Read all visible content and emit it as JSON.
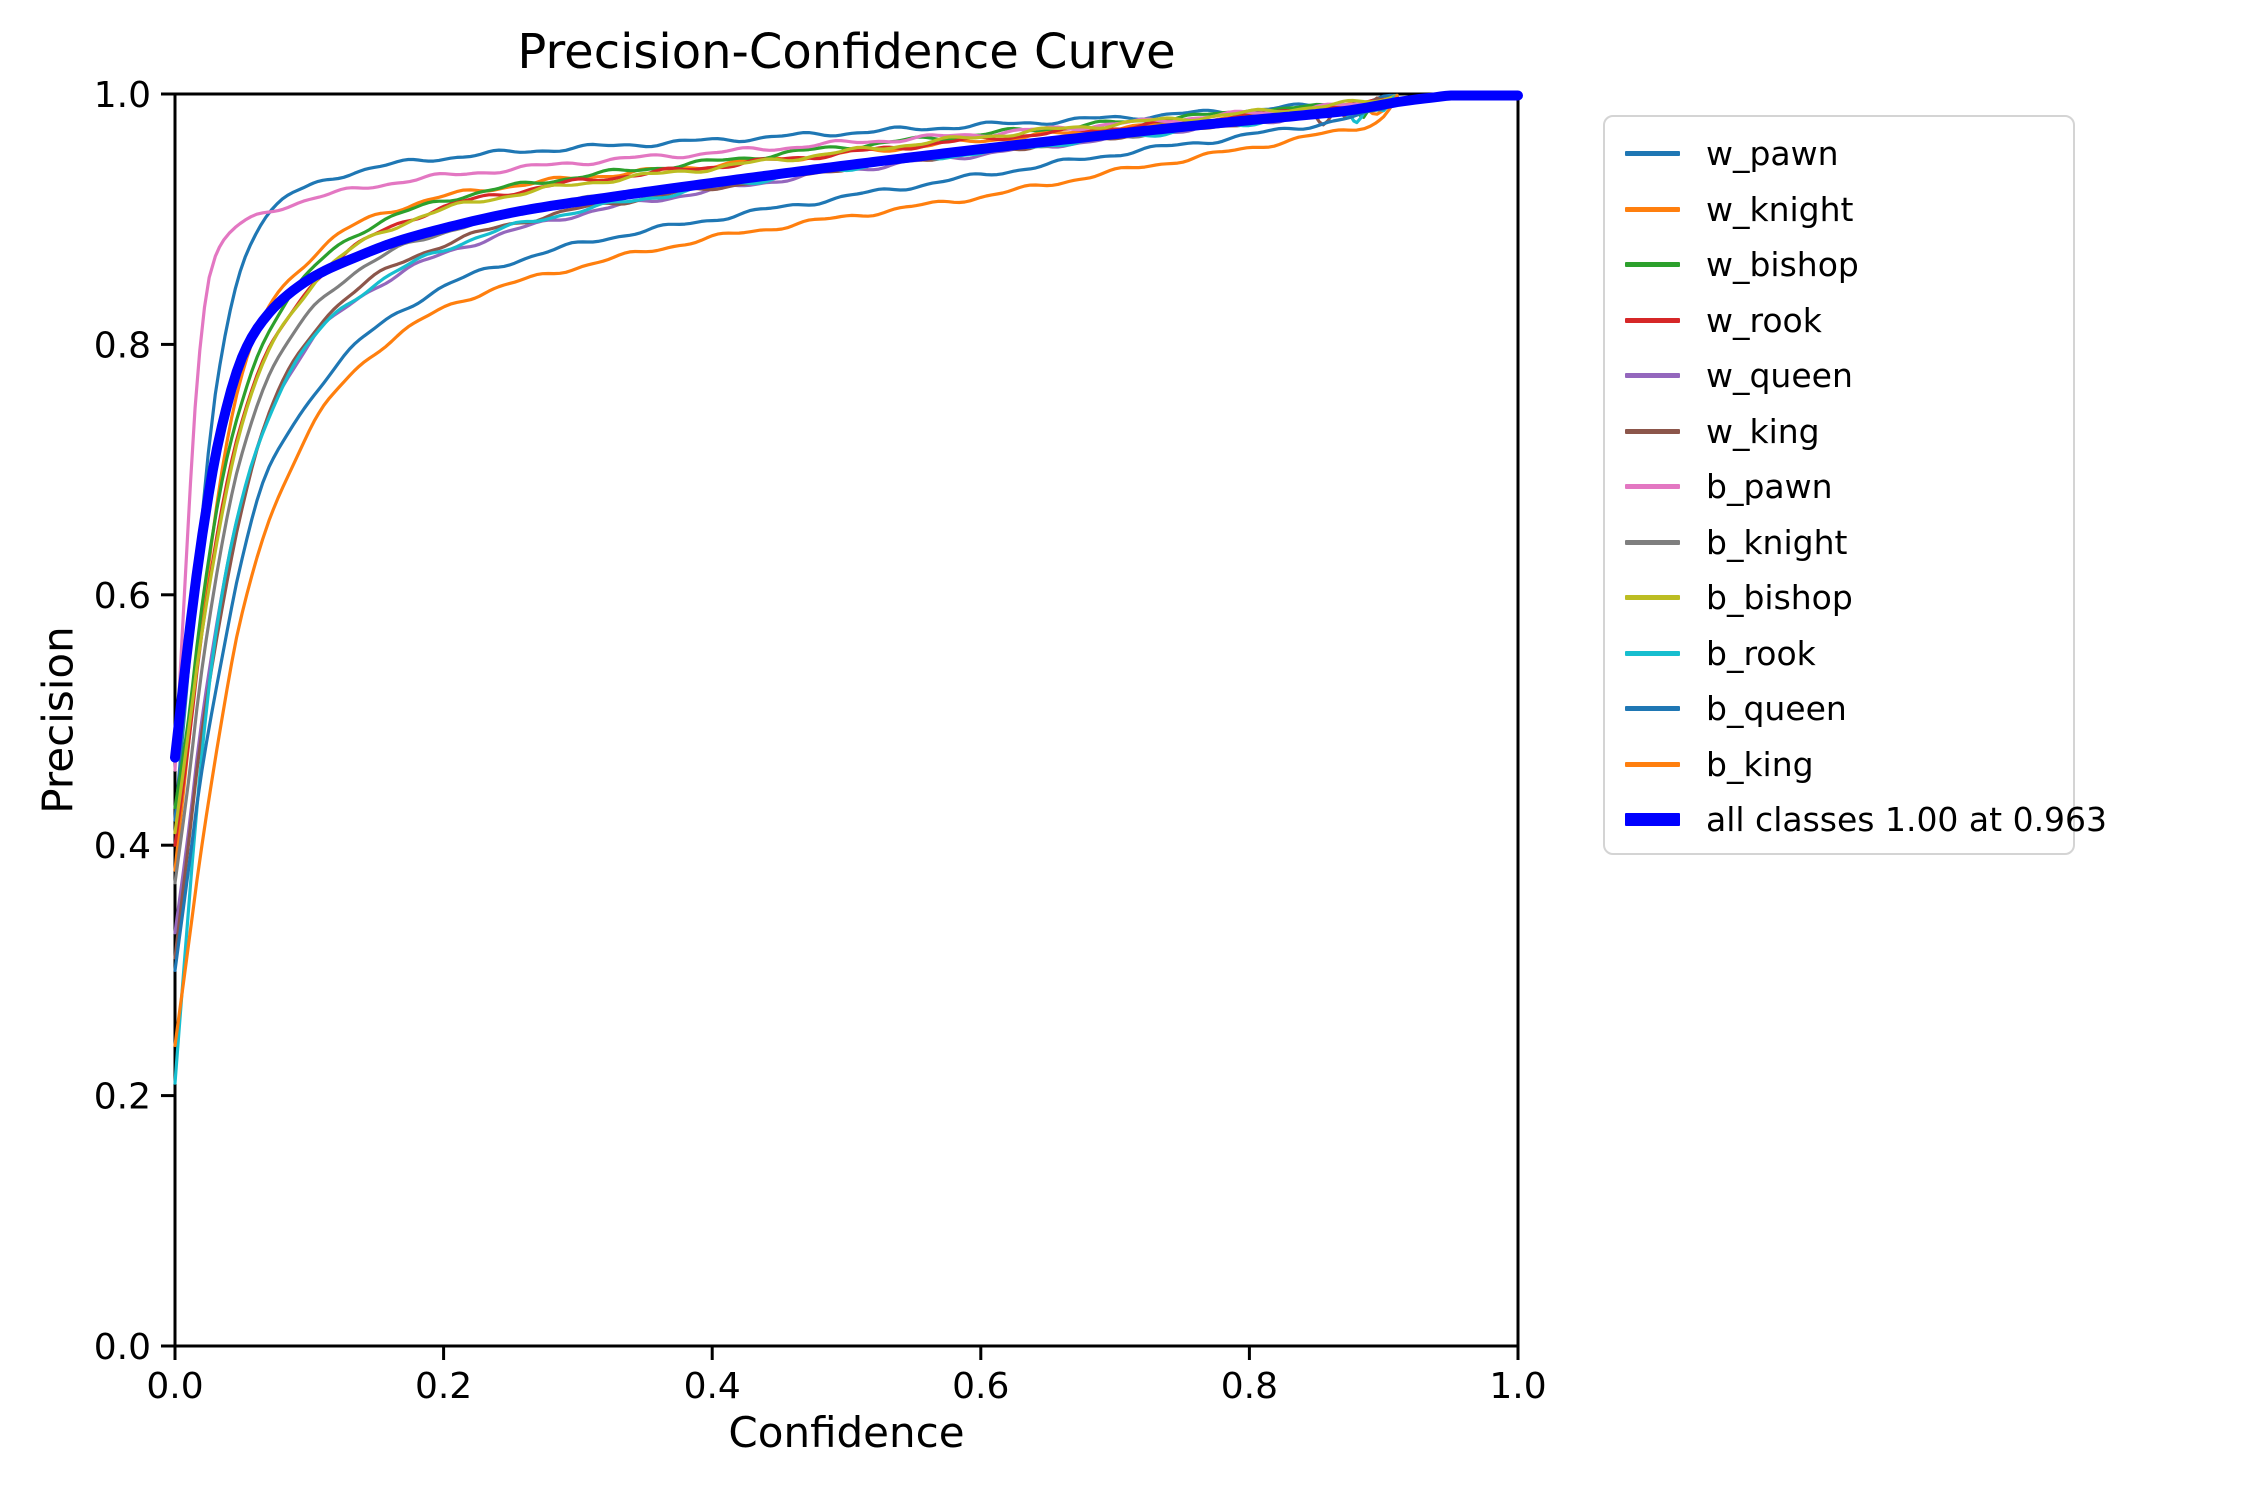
{
  "figure": {
    "background": "#ffffff"
  },
  "chart_data": {
    "type": "line",
    "title": "Precision-Confidence Curve",
    "xlabel": "Confidence",
    "ylabel": "Precision",
    "xlim": [
      0,
      1
    ],
    "ylim": [
      0,
      1
    ],
    "xticks": [
      "0.0",
      "0.2",
      "0.4",
      "0.6",
      "0.8",
      "1.0"
    ],
    "yticks": [
      "0.0",
      "0.2",
      "0.4",
      "0.6",
      "0.8",
      "1.0"
    ],
    "grid": false,
    "legend_position": "outside-right",
    "annotation": "all classes 1.00 at 0.963",
    "spine_color": "#000000",
    "series": [
      {
        "name": "w_pawn",
        "color": "#1f77b4",
        "line_width": 3.2,
        "points": [
          [
            0,
            0.42
          ],
          [
            0.01,
            0.54
          ],
          [
            0.02,
            0.66
          ],
          [
            0.03,
            0.76
          ],
          [
            0.045,
            0.845
          ],
          [
            0.06,
            0.89
          ],
          [
            0.08,
            0.915
          ],
          [
            0.1,
            0.926
          ],
          [
            0.13,
            0.937
          ],
          [
            0.17,
            0.945
          ],
          [
            0.22,
            0.951
          ],
          [
            0.3,
            0.957
          ],
          [
            0.4,
            0.963
          ],
          [
            0.5,
            0.969
          ],
          [
            0.6,
            0.975
          ],
          [
            0.7,
            0.981
          ],
          [
            0.78,
            0.986
          ],
          [
            0.84,
            0.99
          ],
          [
            0.88,
            0.993
          ],
          [
            0.9,
            0.996
          ],
          [
            0.91,
            1.0
          ]
        ]
      },
      {
        "name": "w_knight",
        "color": "#ff7f0e",
        "line_width": 3.2,
        "points": [
          [
            0,
            0.38
          ],
          [
            0.01,
            0.48
          ],
          [
            0.02,
            0.58
          ],
          [
            0.035,
            0.7
          ],
          [
            0.05,
            0.775
          ],
          [
            0.07,
            0.83
          ],
          [
            0.1,
            0.868
          ],
          [
            0.13,
            0.893
          ],
          [
            0.17,
            0.91
          ],
          [
            0.22,
            0.922
          ],
          [
            0.3,
            0.933
          ],
          [
            0.4,
            0.943
          ],
          [
            0.5,
            0.953
          ],
          [
            0.6,
            0.963
          ],
          [
            0.7,
            0.972
          ],
          [
            0.78,
            0.98
          ],
          [
            0.84,
            0.986
          ],
          [
            0.88,
            0.99
          ],
          [
            0.895,
            0.985
          ],
          [
            0.91,
            1.0
          ]
        ]
      },
      {
        "name": "w_bishop",
        "color": "#2ca02c",
        "line_width": 3.2,
        "points": [
          [
            0,
            0.43
          ],
          [
            0.01,
            0.5
          ],
          [
            0.02,
            0.59
          ],
          [
            0.035,
            0.69
          ],
          [
            0.05,
            0.755
          ],
          [
            0.07,
            0.812
          ],
          [
            0.1,
            0.857
          ],
          [
            0.13,
            0.885
          ],
          [
            0.17,
            0.905
          ],
          [
            0.22,
            0.92
          ],
          [
            0.3,
            0.934
          ],
          [
            0.4,
            0.946
          ],
          [
            0.5,
            0.958
          ],
          [
            0.6,
            0.968
          ],
          [
            0.7,
            0.977
          ],
          [
            0.78,
            0.984
          ],
          [
            0.84,
            0.989
          ],
          [
            0.875,
            0.99
          ],
          [
            0.885,
            0.982
          ],
          [
            0.893,
            0.995
          ],
          [
            0.9,
            0.988
          ],
          [
            0.91,
            1.0
          ]
        ]
      },
      {
        "name": "w_rook",
        "color": "#d62728",
        "line_width": 3.2,
        "points": [
          [
            0,
            0.4
          ],
          [
            0.01,
            0.48
          ],
          [
            0.02,
            0.57
          ],
          [
            0.035,
            0.67
          ],
          [
            0.05,
            0.74
          ],
          [
            0.07,
            0.795
          ],
          [
            0.1,
            0.845
          ],
          [
            0.13,
            0.875
          ],
          [
            0.17,
            0.898
          ],
          [
            0.22,
            0.915
          ],
          [
            0.3,
            0.93
          ],
          [
            0.4,
            0.942
          ],
          [
            0.5,
            0.953
          ],
          [
            0.6,
            0.964
          ],
          [
            0.7,
            0.973
          ],
          [
            0.78,
            0.981
          ],
          [
            0.84,
            0.987
          ],
          [
            0.88,
            0.991
          ],
          [
            0.9,
            0.995
          ],
          [
            0.91,
            1.0
          ]
        ]
      },
      {
        "name": "w_queen",
        "color": "#9467bd",
        "line_width": 3.2,
        "points": [
          [
            0,
            0.33
          ],
          [
            0.01,
            0.41
          ],
          [
            0.02,
            0.5
          ],
          [
            0.035,
            0.6
          ],
          [
            0.05,
            0.675
          ],
          [
            0.07,
            0.745
          ],
          [
            0.1,
            0.8
          ],
          [
            0.13,
            0.832
          ],
          [
            0.17,
            0.858
          ],
          [
            0.22,
            0.88
          ],
          [
            0.3,
            0.904
          ],
          [
            0.4,
            0.923
          ],
          [
            0.5,
            0.939
          ],
          [
            0.6,
            0.952
          ],
          [
            0.7,
            0.965
          ],
          [
            0.78,
            0.975
          ],
          [
            0.84,
            0.982
          ],
          [
            0.88,
            0.988
          ],
          [
            0.9,
            0.992
          ],
          [
            0.91,
            1.0
          ]
        ]
      },
      {
        "name": "w_king",
        "color": "#8c564b",
        "line_width": 3.2,
        "points": [
          [
            0,
            0.31
          ],
          [
            0.01,
            0.4
          ],
          [
            0.02,
            0.49
          ],
          [
            0.035,
            0.59
          ],
          [
            0.05,
            0.67
          ],
          [
            0.07,
            0.745
          ],
          [
            0.1,
            0.805
          ],
          [
            0.13,
            0.84
          ],
          [
            0.17,
            0.866
          ],
          [
            0.22,
            0.887
          ],
          [
            0.3,
            0.908
          ],
          [
            0.4,
            0.925
          ],
          [
            0.5,
            0.941
          ],
          [
            0.6,
            0.954
          ],
          [
            0.7,
            0.966
          ],
          [
            0.78,
            0.975
          ],
          [
            0.82,
            0.98
          ],
          [
            0.845,
            0.985
          ],
          [
            0.855,
            0.977
          ],
          [
            0.865,
            0.99
          ],
          [
            0.872,
            0.981
          ],
          [
            0.878,
            0.992
          ],
          [
            0.885,
            0.984
          ],
          [
            0.895,
            0.996
          ],
          [
            0.905,
            0.988
          ],
          [
            0.91,
            1.0
          ]
        ]
      },
      {
        "name": "b_pawn",
        "color": "#e377c2",
        "line_width": 3.2,
        "points": [
          [
            0,
            0.46
          ],
          [
            0.008,
            0.62
          ],
          [
            0.015,
            0.75
          ],
          [
            0.022,
            0.83
          ],
          [
            0.03,
            0.87
          ],
          [
            0.045,
            0.893
          ],
          [
            0.07,
            0.906
          ],
          [
            0.1,
            0.916
          ],
          [
            0.14,
            0.925
          ],
          [
            0.18,
            0.932
          ],
          [
            0.25,
            0.94
          ],
          [
            0.32,
            0.947
          ],
          [
            0.4,
            0.953
          ],
          [
            0.5,
            0.961
          ],
          [
            0.6,
            0.968
          ],
          [
            0.7,
            0.976
          ],
          [
            0.78,
            0.983
          ],
          [
            0.84,
            0.988
          ],
          [
            0.88,
            0.992
          ],
          [
            0.9,
            0.996
          ],
          [
            0.91,
            1.0
          ]
        ]
      },
      {
        "name": "b_knight",
        "color": "#7f7f7f",
        "line_width": 3.2,
        "points": [
          [
            0,
            0.37
          ],
          [
            0.01,
            0.45
          ],
          [
            0.02,
            0.54
          ],
          [
            0.035,
            0.64
          ],
          [
            0.05,
            0.715
          ],
          [
            0.07,
            0.775
          ],
          [
            0.1,
            0.825
          ],
          [
            0.13,
            0.855
          ],
          [
            0.17,
            0.878
          ],
          [
            0.22,
            0.896
          ],
          [
            0.3,
            0.915
          ],
          [
            0.4,
            0.929
          ],
          [
            0.5,
            0.943
          ],
          [
            0.6,
            0.955
          ],
          [
            0.7,
            0.966
          ],
          [
            0.78,
            0.976
          ],
          [
            0.84,
            0.983
          ],
          [
            0.88,
            0.988
          ],
          [
            0.89,
            0.992
          ],
          [
            0.9,
            0.988
          ],
          [
            0.91,
            1.0
          ]
        ]
      },
      {
        "name": "b_bishop",
        "color": "#bcbd22",
        "line_width": 3.2,
        "points": [
          [
            0,
            0.41
          ],
          [
            0.01,
            0.49
          ],
          [
            0.02,
            0.57
          ],
          [
            0.035,
            0.665
          ],
          [
            0.05,
            0.735
          ],
          [
            0.07,
            0.795
          ],
          [
            0.1,
            0.845
          ],
          [
            0.13,
            0.875
          ],
          [
            0.17,
            0.897
          ],
          [
            0.22,
            0.913
          ],
          [
            0.3,
            0.928
          ],
          [
            0.4,
            0.941
          ],
          [
            0.5,
            0.954
          ],
          [
            0.6,
            0.966
          ],
          [
            0.7,
            0.976
          ],
          [
            0.78,
            0.983
          ],
          [
            0.84,
            0.989
          ],
          [
            0.88,
            0.993
          ],
          [
            0.9,
            0.996
          ],
          [
            0.91,
            1.0
          ]
        ]
      },
      {
        "name": "b_rook",
        "color": "#17becf",
        "line_width": 3.2,
        "points": [
          [
            0,
            0.21
          ],
          [
            0.008,
            0.32
          ],
          [
            0.018,
            0.45
          ],
          [
            0.03,
            0.565
          ],
          [
            0.045,
            0.655
          ],
          [
            0.065,
            0.73
          ],
          [
            0.09,
            0.785
          ],
          [
            0.12,
            0.825
          ],
          [
            0.16,
            0.855
          ],
          [
            0.21,
            0.88
          ],
          [
            0.28,
            0.902
          ],
          [
            0.38,
            0.922
          ],
          [
            0.48,
            0.938
          ],
          [
            0.58,
            0.951
          ],
          [
            0.68,
            0.963
          ],
          [
            0.76,
            0.972
          ],
          [
            0.83,
            0.981
          ],
          [
            0.87,
            0.986
          ],
          [
            0.88,
            0.978
          ],
          [
            0.89,
            0.993
          ],
          [
            0.9,
            0.987
          ],
          [
            0.91,
            1.0
          ]
        ]
      },
      {
        "name": "b_queen",
        "color": "#1f77b4",
        "line_width": 3.2,
        "points": [
          [
            0,
            0.3
          ],
          [
            0.01,
            0.38
          ],
          [
            0.02,
            0.46
          ],
          [
            0.035,
            0.55
          ],
          [
            0.05,
            0.63
          ],
          [
            0.07,
            0.7
          ],
          [
            0.1,
            0.755
          ],
          [
            0.13,
            0.795
          ],
          [
            0.17,
            0.828
          ],
          [
            0.22,
            0.855
          ],
          [
            0.3,
            0.88
          ],
          [
            0.4,
            0.9
          ],
          [
            0.5,
            0.918
          ],
          [
            0.6,
            0.935
          ],
          [
            0.7,
            0.952
          ],
          [
            0.78,
            0.964
          ],
          [
            0.84,
            0.974
          ],
          [
            0.88,
            0.982
          ],
          [
            0.9,
            0.988
          ],
          [
            0.91,
            1.0
          ]
        ]
      },
      {
        "name": "b_king",
        "color": "#ff7f0e",
        "line_width": 3.2,
        "points": [
          [
            0,
            0.24
          ],
          [
            0.01,
            0.32
          ],
          [
            0.02,
            0.4
          ],
          [
            0.035,
            0.5
          ],
          [
            0.05,
            0.585
          ],
          [
            0.07,
            0.66
          ],
          [
            0.1,
            0.73
          ],
          [
            0.13,
            0.775
          ],
          [
            0.17,
            0.81
          ],
          [
            0.22,
            0.838
          ],
          [
            0.3,
            0.862
          ],
          [
            0.4,
            0.885
          ],
          [
            0.5,
            0.902
          ],
          [
            0.6,
            0.918
          ],
          [
            0.7,
            0.938
          ],
          [
            0.78,
            0.953
          ],
          [
            0.84,
            0.965
          ],
          [
            0.88,
            0.973
          ],
          [
            0.9,
            0.982
          ],
          [
            0.91,
            1.0
          ]
        ]
      },
      {
        "name": "all classes 1.00 at 0.963",
        "color": "#0000ff",
        "line_width": 10,
        "points": [
          [
            0,
            0.47
          ],
          [
            0.008,
            0.545
          ],
          [
            0.016,
            0.615
          ],
          [
            0.025,
            0.68
          ],
          [
            0.035,
            0.735
          ],
          [
            0.05,
            0.79
          ],
          [
            0.07,
            0.825
          ],
          [
            0.1,
            0.852
          ],
          [
            0.14,
            0.872
          ],
          [
            0.18,
            0.887
          ],
          [
            0.25,
            0.905
          ],
          [
            0.32,
            0.917
          ],
          [
            0.4,
            0.929
          ],
          [
            0.5,
            0.943
          ],
          [
            0.6,
            0.956
          ],
          [
            0.7,
            0.968
          ],
          [
            0.78,
            0.977
          ],
          [
            0.84,
            0.983
          ],
          [
            0.875,
            0.987
          ],
          [
            0.91,
            0.9935
          ],
          [
            0.935,
            0.997
          ],
          [
            0.963,
            1.0
          ],
          [
            1.0,
            1.0
          ]
        ]
      }
    ]
  }
}
